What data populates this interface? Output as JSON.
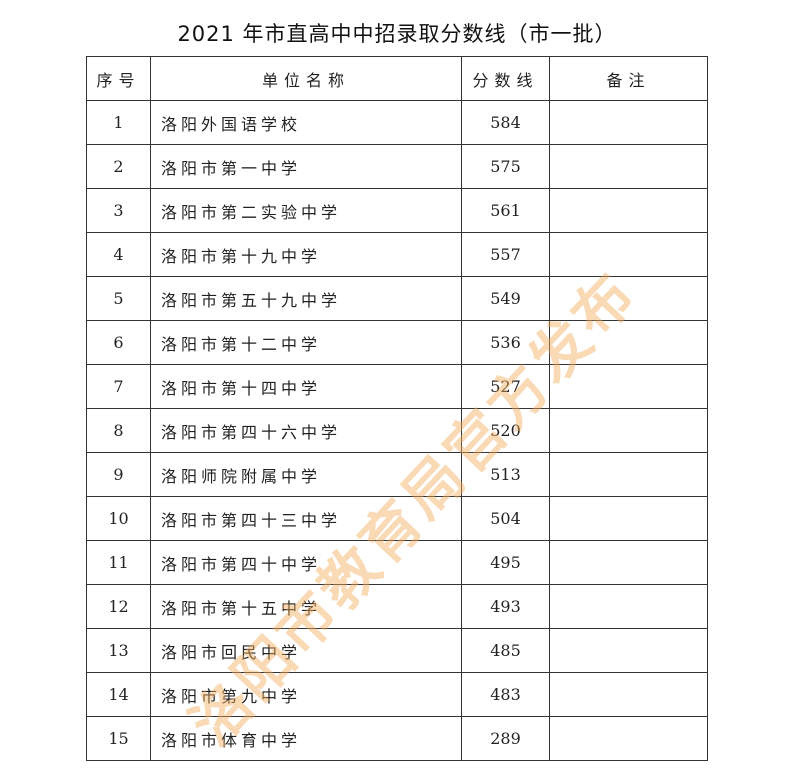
{
  "title": "2021 年市直高中中招录取分数线（市一批）",
  "headers": [
    "序号",
    "单位名称",
    "分数线",
    "备注"
  ],
  "rows": [
    {
      "no": "1",
      "name": "洛阳外国语学校",
      "score": "584",
      "note": ""
    },
    {
      "no": "2",
      "name": "洛阳市第一中学",
      "score": "575",
      "note": ""
    },
    {
      "no": "3",
      "name": "洛阳市第二实验中学",
      "score": "561",
      "note": ""
    },
    {
      "no": "4",
      "name": "洛阳市第十九中学",
      "score": "557",
      "note": ""
    },
    {
      "no": "5",
      "name": "洛阳市第五十九中学",
      "score": "549",
      "note": ""
    },
    {
      "no": "6",
      "name": "洛阳市第十二中学",
      "score": "536",
      "note": ""
    },
    {
      "no": "7",
      "name": "洛阳市第十四中学",
      "score": "527",
      "note": ""
    },
    {
      "no": "8",
      "name": "洛阳市第四十六中学",
      "score": "520",
      "note": ""
    },
    {
      "no": "9",
      "name": "洛阳师院附属中学",
      "score": "513",
      "note": ""
    },
    {
      "no": "10",
      "name": "洛阳市第四十三中学",
      "score": "504",
      "note": ""
    },
    {
      "no": "11",
      "name": "洛阳市第四十中学",
      "score": "495",
      "note": ""
    },
    {
      "no": "12",
      "name": "洛阳市第十五中学",
      "score": "493",
      "note": ""
    },
    {
      "no": "13",
      "name": "洛阳市回民中学",
      "score": "485",
      "note": ""
    },
    {
      "no": "14",
      "name": "洛阳市第九中学",
      "score": "483",
      "note": ""
    },
    {
      "no": "15",
      "name": "洛阳市体育中学",
      "score": "289",
      "note": ""
    }
  ],
  "watermark": "洛阳市教育局官方发布",
  "colors": {
    "watermark": "#f3aa5a",
    "border": "#333333"
  }
}
